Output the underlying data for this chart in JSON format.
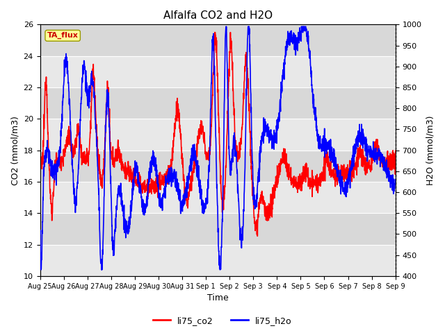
{
  "title": "Alfalfa CO2 and H2O",
  "xlabel": "Time",
  "ylabel_left": "CO2 (mmol/m3)",
  "ylabel_right": "H2O (mmol/m3)",
  "annotation": "TA_flux",
  "ylim_left": [
    10,
    26
  ],
  "ylim_right": [
    400,
    1000
  ],
  "yticks_left": [
    10,
    12,
    14,
    16,
    18,
    20,
    22,
    24,
    26
  ],
  "yticks_right": [
    400,
    450,
    500,
    550,
    600,
    650,
    700,
    750,
    800,
    850,
    900,
    950,
    1000
  ],
  "xtick_labels": [
    "Aug 25",
    "Aug 26",
    "Aug 27",
    "Aug 28",
    "Aug 29",
    "Aug 30",
    "Aug 31",
    "Sep 1",
    "Sep 2",
    "Sep 3",
    "Sep 4",
    "Sep 5",
    "Sep 6",
    "Sep 7",
    "Sep 8",
    "Sep 9"
  ],
  "color_co2": "#ff0000",
  "color_h2o": "#0000ff",
  "plot_bg": "#d8d8d8",
  "band_light": "#e8e8e8",
  "annotation_bg": "#ffff99",
  "annotation_border": "#999900",
  "legend_co2": "li75_co2",
  "legend_h2o": "li75_h2o",
  "linewidth": 1.2
}
